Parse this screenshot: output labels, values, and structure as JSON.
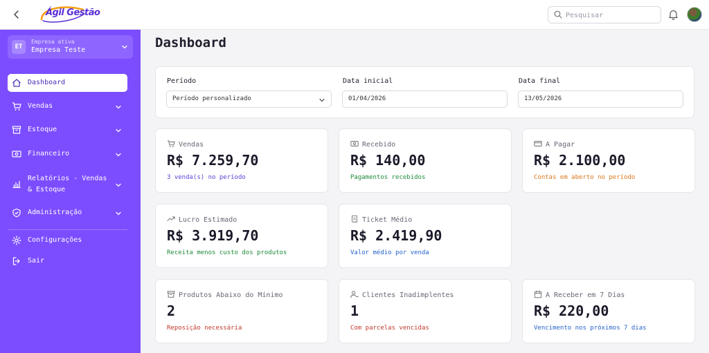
{
  "header": {
    "logo_text": "Ágil Gestão",
    "search_placeholder": "Pesquisar"
  },
  "sidebar": {
    "company": {
      "initials": "ET",
      "caption": "Empresa ativa",
      "name": "Empresa Teste"
    },
    "items": [
      {
        "label": "Dashboard",
        "icon": "home-icon",
        "active": true
      },
      {
        "label": "Vendas",
        "icon": "cart-icon",
        "expandable": true
      },
      {
        "label": "Estoque",
        "icon": "box-icon",
        "expandable": true
      },
      {
        "label": "Financeiro",
        "icon": "money-icon",
        "expandable": true
      },
      {
        "label": "Relatórios - Vendas & Estoque",
        "icon": "bar-chart-icon",
        "expandable": true
      },
      {
        "label": "Administração",
        "icon": "shield-check-icon",
        "expandable": true
      },
      {
        "label": "Configurações",
        "icon": "gear-icon"
      },
      {
        "label": "Sair",
        "icon": "logout-icon"
      }
    ]
  },
  "main": {
    "title": "Dashboard",
    "filters": {
      "period_label": "Período",
      "period_value": "Período personalizado",
      "start_label": "Data inicial",
      "start_value": "01/04/2026",
      "end_label": "Data final",
      "end_value": "13/05/2026"
    },
    "cards": [
      {
        "title": "Vendas",
        "value": "R$ 7.259,70",
        "subtitle": "3 venda(s) no período",
        "color": "#5b3fd6",
        "icon": "cart-icon"
      },
      {
        "title": "Recebido",
        "value": "R$ 140,00",
        "subtitle": "Pagamentos recebidos",
        "color": "#1e8a3a",
        "icon": "money-icon"
      },
      {
        "title": "A Pagar",
        "value": "R$ 2.100,00",
        "subtitle": "Contas em aberto no período",
        "color": "#d9771a",
        "icon": "credit-card-icon"
      },
      {
        "title": "Lucro Estimado",
        "value": "R$ 3.919,70",
        "subtitle": "Receita menos custo dos produtos",
        "color": "#1e8a3a",
        "icon": "trending-up-icon"
      },
      {
        "title": "Ticket Médio",
        "value": "R$ 2.419,90",
        "subtitle": "Valor médio por venda",
        "color": "#2563c9",
        "icon": "receipt-icon"
      },
      {
        "title": "Produtos Abaixo do Mínimo",
        "value": "2",
        "subtitle": "Reposição necessária",
        "color": "#c0392b",
        "icon": "archive-icon"
      },
      {
        "title": "Clientes Inadimplentes",
        "value": "1",
        "subtitle": "Com parcelas vencidas",
        "color": "#c0392b",
        "icon": "user-minus-icon"
      },
      {
        "title": "A Receber em 7 Dias",
        "value": "R$ 220,00",
        "subtitle": "Vencimento nos próximos 7 dias",
        "color": "#2563c9",
        "icon": "calendar-icon"
      }
    ]
  }
}
